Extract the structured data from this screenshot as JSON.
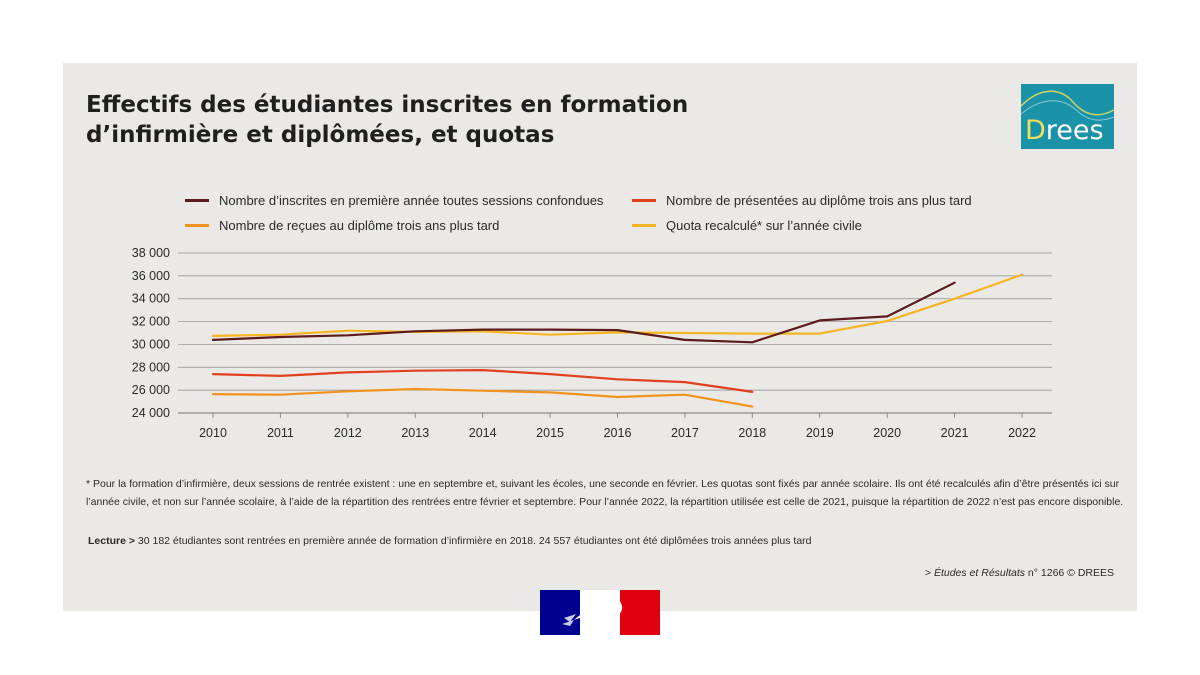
{
  "title_lines": [
    "Effectifs des étudiantes inscrites en formation",
    "d’infirmière et diplômées, et quotas"
  ],
  "logo": {
    "text": "Drees",
    "bg": "#1a93a8",
    "accent": "#f2e05a"
  },
  "chart_data": {
    "type": "line",
    "x": [
      "2010",
      "2011",
      "2012",
      "2013",
      "2014",
      "2015",
      "2016",
      "2017",
      "2018",
      "2019",
      "2020",
      "2021",
      "2022"
    ],
    "ylim": [
      24000,
      38000
    ],
    "yticks": [
      24000,
      26000,
      28000,
      30000,
      32000,
      34000,
      36000,
      38000
    ],
    "ytick_labels": [
      "24 000",
      "26 000",
      "28 000",
      "30 000",
      "32 000",
      "34 000",
      "36 000",
      "38 000"
    ],
    "grid": true,
    "legend_position": "top",
    "series": [
      {
        "name": "Nombre d’inscrites en première année toutes sessions confondues",
        "color": "#5c1a1a",
        "values": [
          30400,
          30650,
          30800,
          31150,
          31300,
          31300,
          31250,
          30400,
          30182,
          32100,
          32450,
          35400,
          null
        ]
      },
      {
        "name": "Nombre de présentées au diplôme trois ans plus tard",
        "color": "#e2401c",
        "values": [
          27400,
          27250,
          27550,
          27700,
          27750,
          27400,
          26950,
          26700,
          25850,
          null,
          null,
          null,
          null
        ]
      },
      {
        "name": "Nombre de reçues au diplôme trois ans plus tard",
        "color": "#f0921e",
        "values": [
          25650,
          25600,
          25900,
          26100,
          25950,
          25800,
          25400,
          25600,
          24557,
          null,
          null,
          null,
          null
        ]
      },
      {
        "name": "Quota recalculé* sur l’année civile",
        "color": "#f5b622",
        "values": [
          30750,
          30850,
          31200,
          31100,
          31150,
          30850,
          31050,
          31000,
          30950,
          30950,
          32050,
          34000,
          36100
        ]
      }
    ]
  },
  "footnote": "* Pour la formation d’infirmière, deux sessions de rentrée existent : une en septembre et, suivant les écoles, une seconde en février. Les quotas sont fixés par année scolaire. Ils ont été recalculés afin d’être présentés ici sur l’année civile, et non sur l’année scolaire, à l’aide de la répartition des rentrées entre février et septembre. Pour l’année 2022, la répartition utilisée est celle de 2021, puisque la répartition de 2022 n’est pas encore disponible.",
  "lecture_label": "Lecture >",
  "lecture_text": " 30 182 étudiantes sont rentrées en première année de formation d’infirmière en 2018. 24 557 étudiantes ont été diplômées trois années plus tard",
  "source_prefix": "> ",
  "source_title": "Études et Résultats",
  "source_suffix": " n° 1266 © DREES",
  "colors": {
    "panel": "#ebe9e6",
    "grid": "#8a8a8a",
    "flag_blue": "#000091",
    "flag_red": "#e1000f"
  }
}
